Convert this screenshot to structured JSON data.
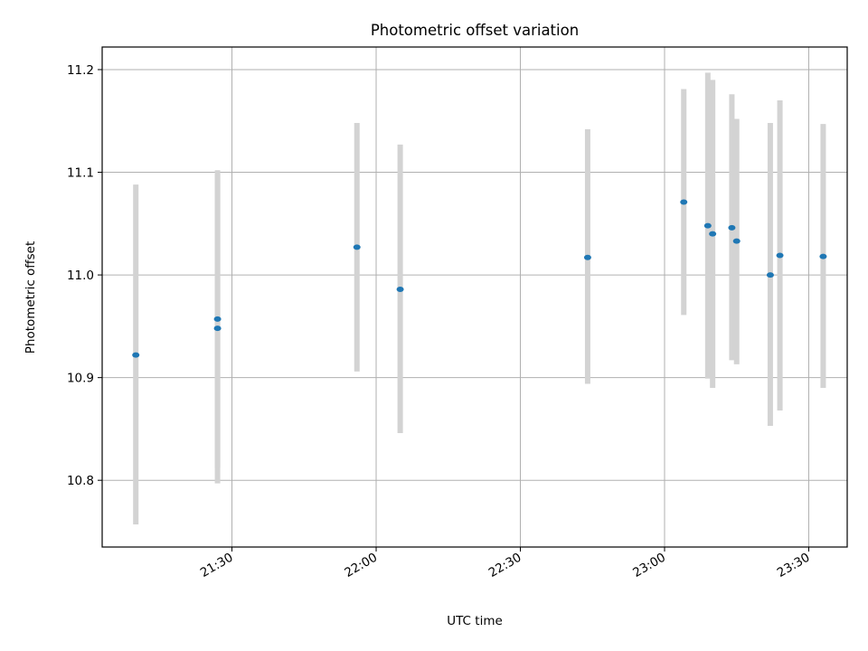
{
  "chart_data": {
    "type": "scatter",
    "title": "Photometric offset variation",
    "xlabel": "UTC time",
    "ylabel": "Photometric offset",
    "grid": true,
    "error_bar_color": "#d3d3d3",
    "point_color": "#1f77b4",
    "xlim": [
      "21:03",
      "23:38"
    ],
    "ylim": [
      10.735,
      11.222
    ],
    "x_ticks": [
      "21:30",
      "22:00",
      "22:30",
      "23:00",
      "23:30"
    ],
    "y_ticks": [
      "10.8",
      "10.9",
      "11.0",
      "11.1",
      "11.2"
    ],
    "points": [
      {
        "x": "21:10",
        "y": 10.922,
        "ylow": 10.757,
        "yhigh": 11.088
      },
      {
        "x": "21:27",
        "y": 10.957,
        "ylow": 10.812,
        "yhigh": 11.102
      },
      {
        "x": "21:27",
        "y": 10.948,
        "ylow": 10.797,
        "yhigh": 11.099
      },
      {
        "x": "21:56",
        "y": 11.027,
        "ylow": 10.906,
        "yhigh": 11.148
      },
      {
        "x": "22:05",
        "y": 10.986,
        "ylow": 10.846,
        "yhigh": 11.127
      },
      {
        "x": "22:44",
        "y": 11.017,
        "ylow": 10.894,
        "yhigh": 11.142
      },
      {
        "x": "23:04",
        "y": 11.071,
        "ylow": 10.961,
        "yhigh": 11.181
      },
      {
        "x": "23:09",
        "y": 11.048,
        "ylow": 10.899,
        "yhigh": 11.197
      },
      {
        "x": "23:10",
        "y": 11.04,
        "ylow": 10.89,
        "yhigh": 11.19
      },
      {
        "x": "23:14",
        "y": 11.046,
        "ylow": 10.917,
        "yhigh": 11.176
      },
      {
        "x": "23:15",
        "y": 11.033,
        "ylow": 10.913,
        "yhigh": 11.152
      },
      {
        "x": "23:22",
        "y": 11.0,
        "ylow": 10.853,
        "yhigh": 11.148
      },
      {
        "x": "23:24",
        "y": 11.019,
        "ylow": 10.868,
        "yhigh": 11.17
      },
      {
        "x": "23:33",
        "y": 11.018,
        "ylow": 10.89,
        "yhigh": 11.147
      }
    ]
  }
}
